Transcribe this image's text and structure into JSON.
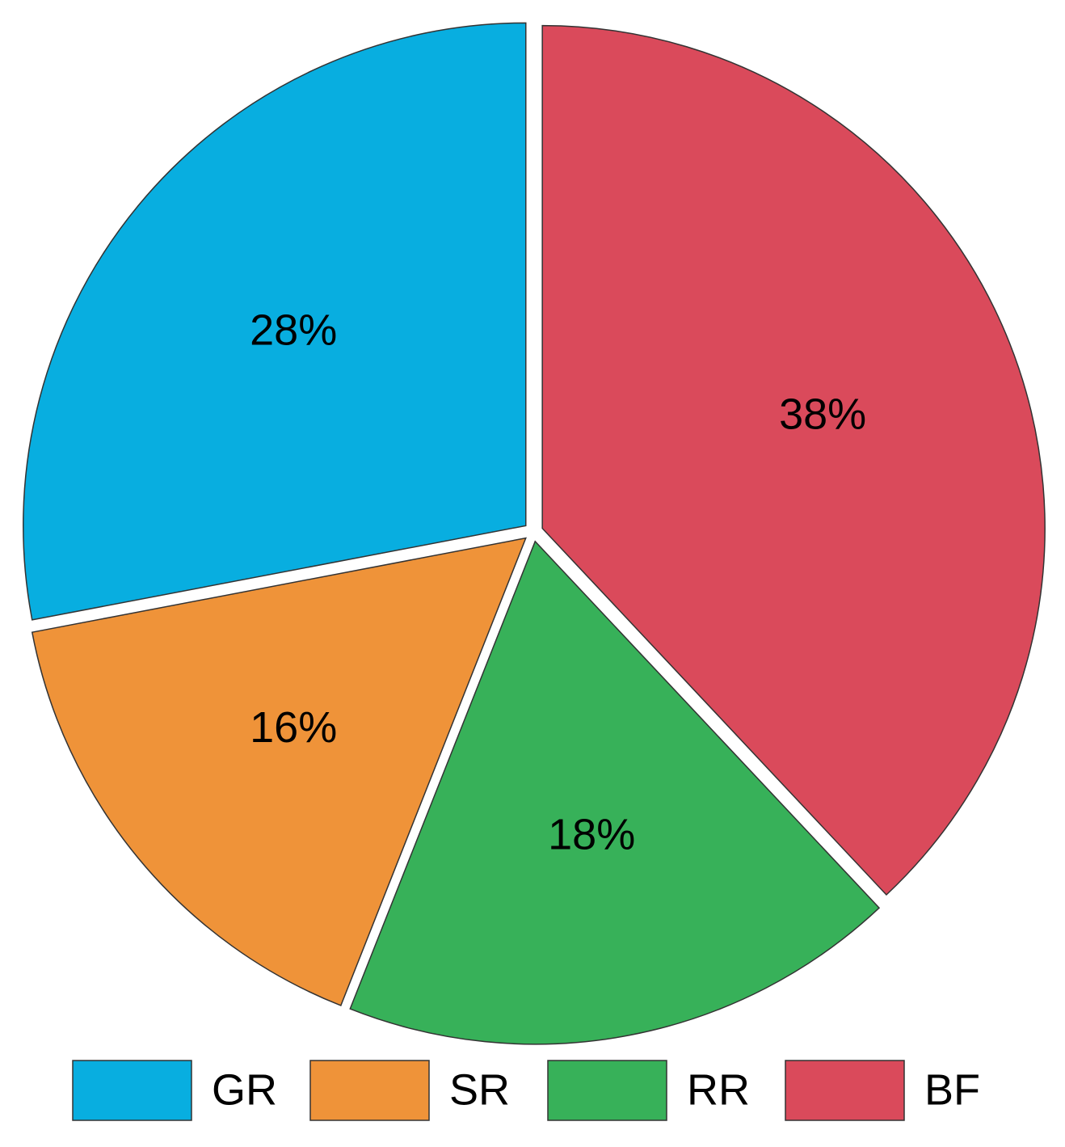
{
  "chart_data": {
    "type": "pie",
    "categories": [
      "GR",
      "SR",
      "RR",
      "BF"
    ],
    "values": [
      28,
      16,
      18,
      38
    ],
    "value_labels": [
      "28%",
      "16%",
      "18%",
      "38%"
    ],
    "colors": [
      "#08aee0",
      "#ef9339",
      "#37b159",
      "#da4a5b"
    ],
    "start_angle": 90,
    "direction": "counterclockwise",
    "legend": "bottom"
  }
}
